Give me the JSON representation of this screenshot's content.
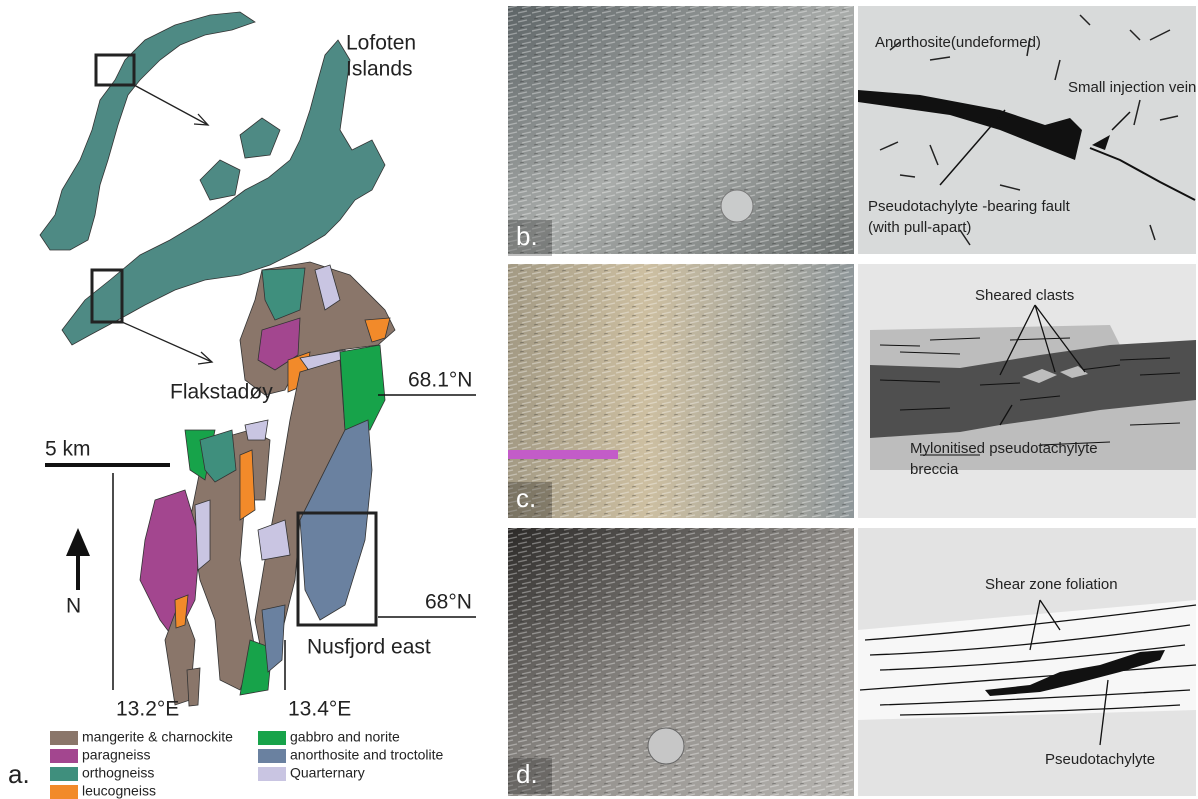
{
  "map": {
    "title_lines": [
      "Lofoten",
      "Islands"
    ],
    "island": "Flakstadøy",
    "lat_north": "68.1°N",
    "lat_south": "68°N",
    "scale": "5 km",
    "north": "N",
    "area": "Nusfjord east",
    "lon_west": "13.2°E",
    "lon_east": "13.4°E",
    "label": "a.",
    "legend": [
      {
        "label": "mangerite & charnockite",
        "color": "#8a766a"
      },
      {
        "label": "paragneiss",
        "color": "#a3468f"
      },
      {
        "label": "orthogneiss",
        "color": "#3f8f7d"
      },
      {
        "label": "leucogneiss",
        "color": "#f28a2a"
      },
      {
        "label": "gabbro and norite",
        "color": "#17a34a"
      },
      {
        "label": "anorthosite and troctolite",
        "color": "#6a81a0"
      },
      {
        "label": "Quarternary",
        "color": "#c9c5e2"
      }
    ]
  },
  "panels": [
    {
      "label": "b.",
      "annotations": [
        "Anorthosite(undeformed)",
        "Small injection vein",
        "Pseudotachylyte -bearing fault",
        "(with pull-apart)"
      ]
    },
    {
      "label": "c.",
      "annotations": [
        "Sheared clasts",
        "Mylonitised pseudotachylyte",
        "breccia"
      ]
    },
    {
      "label": "d.",
      "annotations": [
        "Shear zone foliation",
        "Pseudotachylyte"
      ]
    }
  ]
}
